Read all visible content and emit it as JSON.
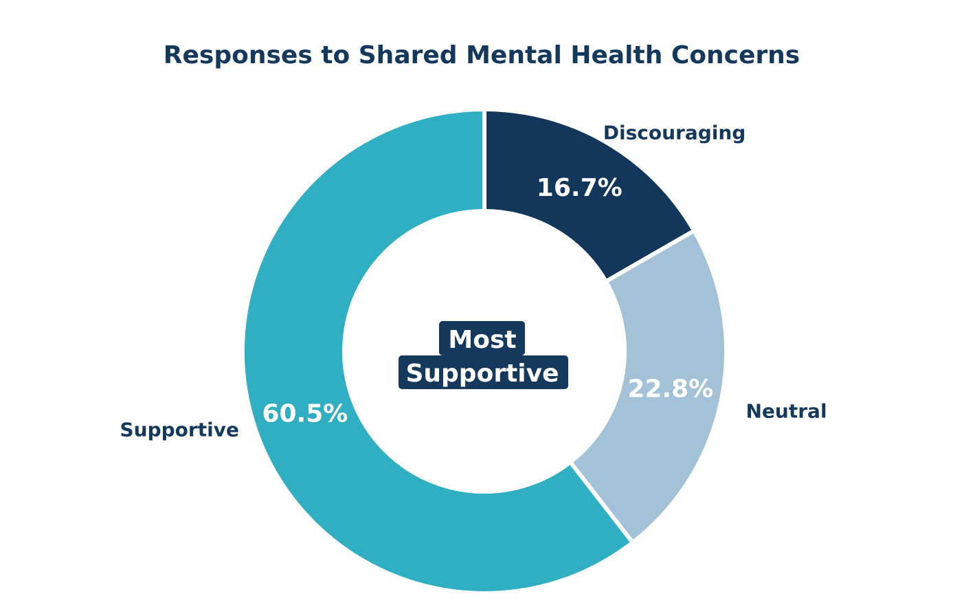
{
  "chart_data": {
    "type": "pie",
    "variant": "donut",
    "title": "Responses to Shared Mental Health Concerns",
    "categories": [
      "Discouraging",
      "Neutral",
      "Supportive"
    ],
    "values": [
      16.7,
      22.8,
      60.5
    ],
    "value_labels": [
      "16.7%",
      "22.8%",
      "60.5%"
    ],
    "colors": [
      "#12375a",
      "#a3c1d7",
      "#30aec2"
    ],
    "start": "top",
    "direction": "clockwise",
    "center_label": [
      "Most",
      "Supportive"
    ],
    "center_label_color": "#14395c",
    "legend": "none"
  }
}
